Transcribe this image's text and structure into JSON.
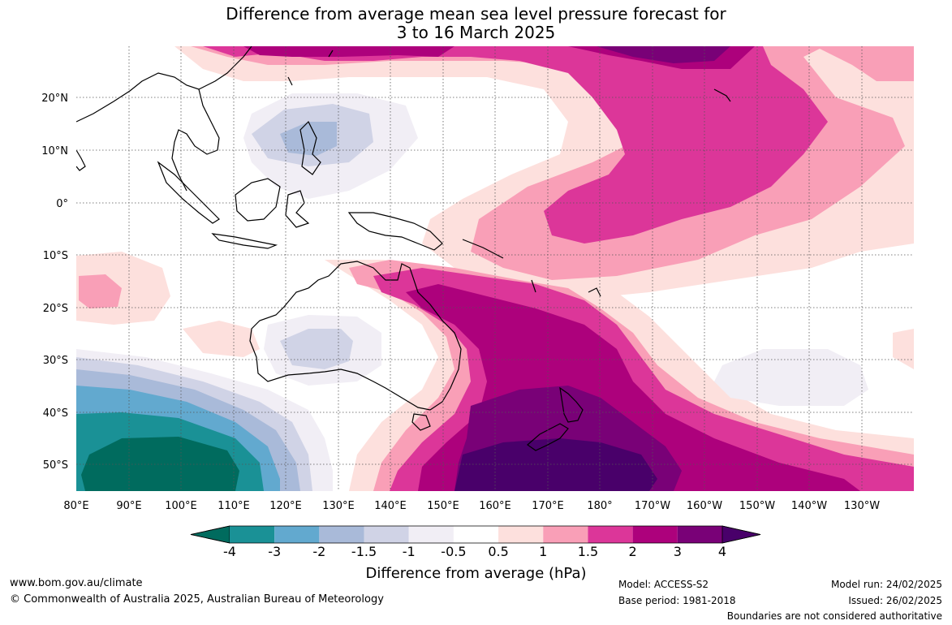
{
  "title_line1": "Difference from average mean sea level pressure forecast for",
  "title_line2": "3 to 16 March 2025",
  "lat_labels": [
    "20°N",
    "10°N",
    "0°",
    "10°S",
    "20°S",
    "30°S",
    "40°S",
    "50°S"
  ],
  "lon_labels": [
    "80°E",
    "90°E",
    "100°E",
    "110°E",
    "120°E",
    "130°E",
    "140°E",
    "150°E",
    "160°E",
    "170°E",
    "180°",
    "170°W",
    "160°W",
    "150°W",
    "140°W",
    "130°W"
  ],
  "colorbar": {
    "title": "Difference from average (hPa)",
    "ticks": [
      "-4",
      "-3",
      "-2",
      "-1.5",
      "-1",
      "-0.5",
      "0.5",
      "1",
      "1.5",
      "2",
      "3",
      "4"
    ],
    "colors": [
      "#006b5e",
      "#1a9196",
      "#62a9cf",
      "#a9bad9",
      "#d0d3e6",
      "#f1eef5",
      "#ffffff",
      "#fde0dd",
      "#f99fb7",
      "#dc3699",
      "#ad017c",
      "#790177",
      "#49006a"
    ]
  },
  "footer": {
    "website": "www.bom.gov.au/climate",
    "copyright": "© Commonwealth of Australia 2025, Australian Bureau of Meteorology",
    "model": "Model: ACCESS-S2",
    "base_period": "Base period: 1981-2018",
    "model_run": "Model run: 24/02/2025",
    "issued": "Issued: 26/02/2025",
    "disclaimer": "Boundaries are not considered authoritative"
  }
}
